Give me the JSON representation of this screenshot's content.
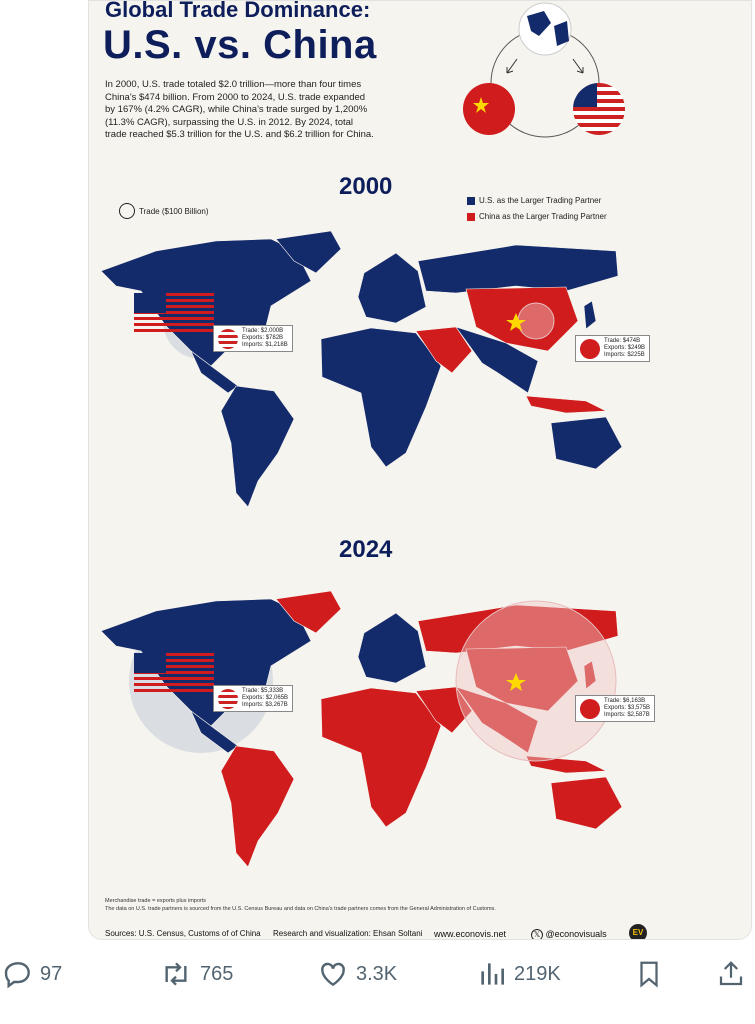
{
  "infographic": {
    "title_line1": "Global Trade Dominance:",
    "title_line2": "U.S. vs. China",
    "intro": "In 2000, U.S. trade totaled $2.0 trillion—more than four times China's $474 billion. From 2000 to 2024, U.S. trade expanded by 167% (4.2% CAGR), while China's trade surged by 1,200% (11.3% CAGR), surpassing the U.S. in 2012. By 2024, total trade reached $5.3 trillion for the U.S. and $6.2 trillion for China.",
    "size_legend": "Trade ($100 Billion)",
    "legend_us": "U.S. as the Larger Trading Partner",
    "legend_china": "China as the Larger Trading Partner",
    "colors": {
      "us": "#132a6b",
      "china": "#d01c1c",
      "background": "#f6f4ef"
    },
    "map2000": {
      "year": "2000",
      "us": {
        "trade": "Trade:",
        "trade_v": "$2.000B",
        "exports": "Exports:",
        "exports_v": "$782B",
        "imports": "Imports:",
        "imports_v": "$1,218B"
      },
      "china": {
        "trade": "Trade:",
        "trade_v": "$474B",
        "exports": "Exports:",
        "exports_v": "$249B",
        "imports": "Imports:",
        "imports_v": "$225B"
      }
    },
    "map2024": {
      "year": "2024",
      "us": {
        "trade": "Trade:",
        "trade_v": "$5,333B",
        "exports": "Exports:",
        "exports_v": "$2,065B",
        "imports": "Imports:",
        "imports_v": "$3,267B"
      },
      "china": {
        "trade": "Trade:",
        "trade_v": "$6,163B",
        "exports": "Exports:",
        "exports_v": "$3,575B",
        "imports": "Imports:",
        "imports_v": "$2,587B"
      }
    },
    "note1": "Merchandise trade = exports plus imports",
    "note2": "The data on U.S. trade partners is sourced from the U.S. Census Bureau and data on China's trade partners comes from the General Administration of Customs.",
    "sources": "Sources: U.S. Census, Customs of of China",
    "research": "Research and visualization: Ehsan Soltani",
    "website": "www.econovis.net",
    "handle": "@econovisuals",
    "logo": "EV"
  },
  "actions": {
    "replies": "97",
    "reposts": "765",
    "likes": "3.3K",
    "views": "219K"
  }
}
